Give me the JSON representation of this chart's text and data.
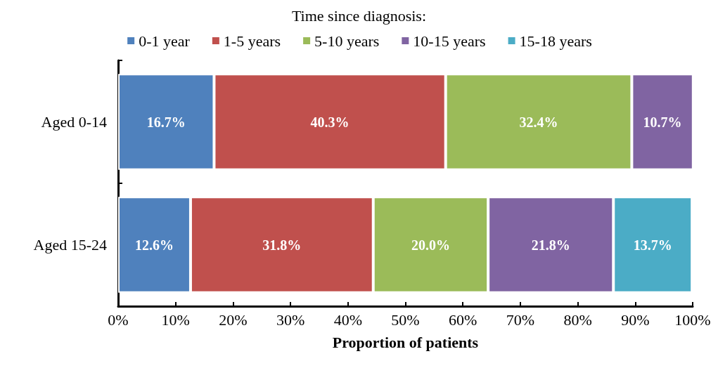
{
  "chart_data": {
    "type": "bar",
    "orientation": "horizontal",
    "stacked": true,
    "legend_title": "Time since diagnosis:",
    "xlabel": "Proportion of patients",
    "categories": [
      "Aged 0-14",
      "Aged 15-24"
    ],
    "series": [
      {
        "name": "0-1 year",
        "color": "#4f81bd",
        "values": [
          16.7,
          12.6
        ],
        "value_labels": [
          "16.7%",
          "12.6%"
        ]
      },
      {
        "name": "1-5 years",
        "color": "#c0504d",
        "values": [
          40.3,
          31.8
        ],
        "value_labels": [
          "40.3%",
          "31.8%"
        ]
      },
      {
        "name": "5-10 years",
        "color": "#9bbb59",
        "values": [
          32.4,
          20.0
        ],
        "value_labels": [
          "32.4%",
          "20.0%"
        ]
      },
      {
        "name": "10-15 years",
        "color": "#8064a2",
        "values": [
          10.7,
          21.8
        ],
        "value_labels": [
          "10.7%",
          "21.8%"
        ]
      },
      {
        "name": "15-18 years",
        "color": "#4bacc6",
        "values": [
          null,
          13.7
        ],
        "value_labels": [
          null,
          "13.7%"
        ]
      }
    ],
    "xlim": [
      0,
      100
    ],
    "xticks": [
      {
        "value": 0,
        "label": "0%"
      },
      {
        "value": 10,
        "label": "10%"
      },
      {
        "value": 20,
        "label": "20%"
      },
      {
        "value": 30,
        "label": "30%"
      },
      {
        "value": 40,
        "label": "40%"
      },
      {
        "value": 50,
        "label": "50%"
      },
      {
        "value": 60,
        "label": "60%"
      },
      {
        "value": 70,
        "label": "70%"
      },
      {
        "value": 80,
        "label": "80%"
      },
      {
        "value": 90,
        "label": "90%"
      },
      {
        "value": 100,
        "label": "100%"
      }
    ],
    "legend": "top",
    "grid": false
  }
}
